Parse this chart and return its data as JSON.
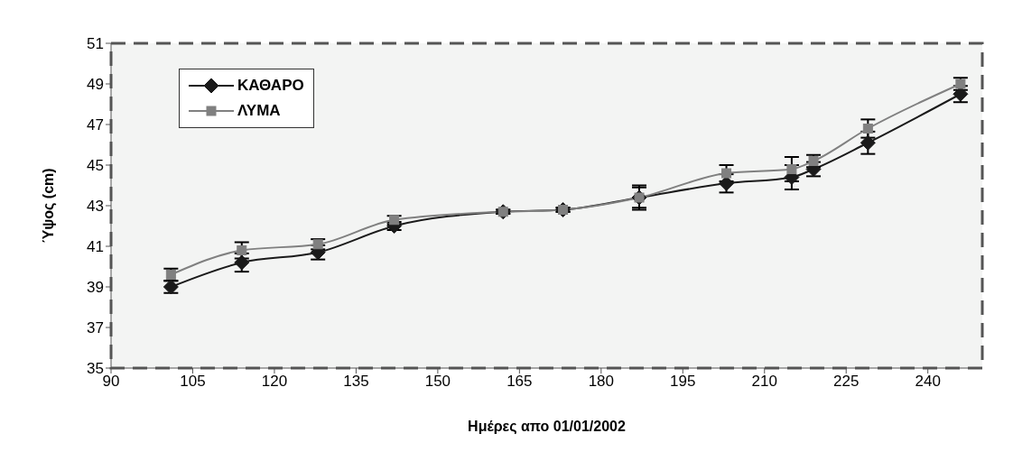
{
  "chart_data": {
    "type": "line",
    "xlabel": "Ημέρες απο 01/01/2002",
    "ylabel": "Ύψος (cm)",
    "x": [
      101,
      114,
      128,
      142,
      162,
      173,
      187,
      203,
      215,
      219,
      229,
      246
    ],
    "series": [
      {
        "name": "ΚΑΘΑΡΟ",
        "color": "#1a1a1a",
        "marker": "diamond",
        "values": [
          39.0,
          40.2,
          40.7,
          42.0,
          42.7,
          42.8,
          43.4,
          44.1,
          44.4,
          44.8,
          46.1,
          48.5
        ],
        "errors": [
          0.3,
          0.45,
          0.35,
          0.2,
          0.1,
          0.1,
          0.6,
          0.45,
          0.6,
          0.35,
          0.55,
          0.4
        ]
      },
      {
        "name": "ΛΥΜΑ",
        "color": "#808080",
        "marker": "square",
        "values": [
          39.6,
          40.8,
          41.1,
          42.3,
          42.7,
          42.8,
          43.4,
          44.6,
          44.8,
          45.2,
          46.8,
          49.0
        ],
        "errors": [
          0.3,
          0.4,
          0.25,
          0.2,
          0.1,
          0.1,
          0.5,
          0.4,
          0.6,
          0.3,
          0.45,
          0.3
        ]
      }
    ],
    "xlim": [
      90,
      250
    ],
    "xticks": [
      90,
      105,
      120,
      135,
      150,
      165,
      180,
      195,
      210,
      225,
      240
    ],
    "ylim": [
      35,
      51
    ],
    "yticks": [
      35,
      37,
      39,
      41,
      43,
      45,
      47,
      49,
      51
    ],
    "grid": false,
    "legend": "top left",
    "line_style": "solid"
  }
}
